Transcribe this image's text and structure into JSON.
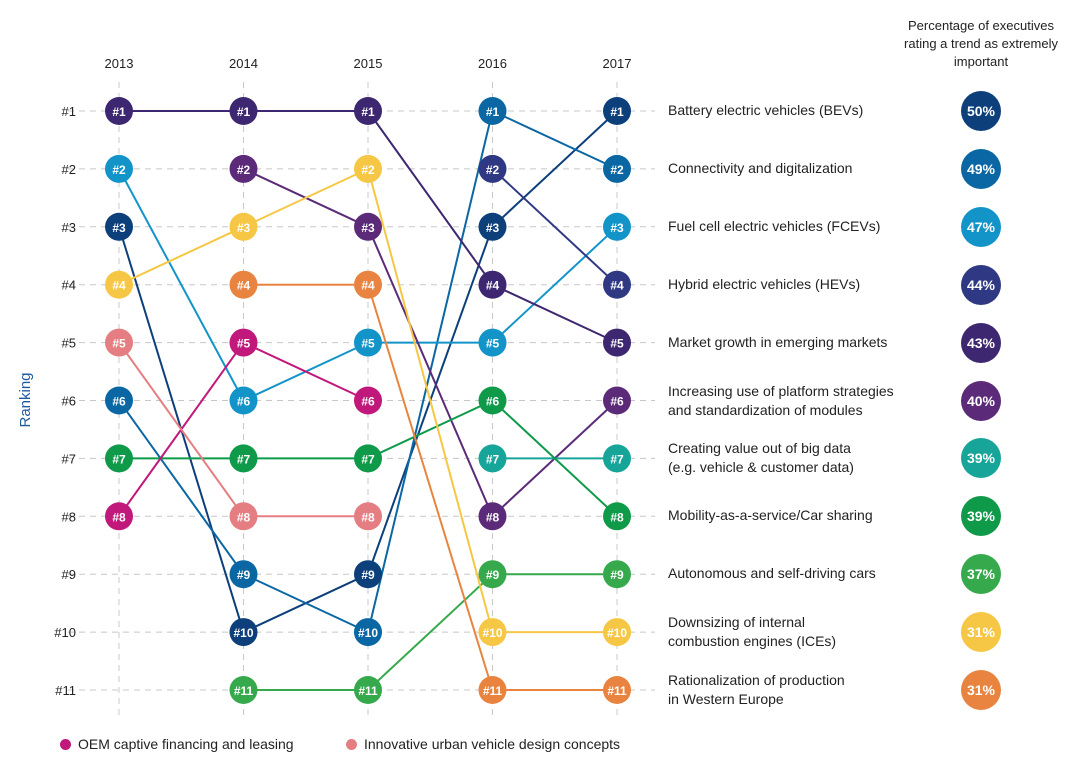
{
  "chart_data": {
    "type": "line",
    "subtype": "bump-chart",
    "title": "",
    "xlabel": "",
    "ylabel": "Ranking",
    "x": [
      "2013",
      "2014",
      "2015",
      "2016",
      "2017"
    ],
    "rank_tick_labels": [
      "#1",
      "#2",
      "#3",
      "#4",
      "#5",
      "#6",
      "#7",
      "#8",
      "#9",
      "#10",
      "#11"
    ],
    "ylim": [
      1,
      11
    ],
    "grid": true,
    "percentage_header": "Percentage of executives\nrating a trend as extremely\nimportant",
    "series": [
      {
        "name": "Battery electric vehicles (BEVs)",
        "color": "#0d3f7a",
        "ranks": [
          3,
          10,
          9,
          3,
          1
        ],
        "pct": "50%"
      },
      {
        "name": "Connectivity and digitalization",
        "color": "#0b67a3",
        "ranks": [
          6,
          9,
          10,
          1,
          2
        ],
        "pct": "49%"
      },
      {
        "name": "Fuel cell electric vehicles (FCEVs)",
        "color": "#1294c9",
        "ranks": [
          2,
          6,
          5,
          5,
          3
        ],
        "pct": "47%"
      },
      {
        "name": "Hybrid electric vehicles (HEVs)",
        "color": "#2f3883",
        "ranks": [
          null,
          null,
          null,
          2,
          4
        ],
        "pct": "44%"
      },
      {
        "name": "Market growth in emerging markets",
        "color": "#3d2770",
        "ranks": [
          1,
          1,
          1,
          4,
          5
        ],
        "pct": "43%"
      },
      {
        "name": "Increasing use of platform strategies\nand standardization of modules",
        "color": "#5b2a78",
        "ranks": [
          null,
          2,
          3,
          8,
          6
        ],
        "pct": "40%"
      },
      {
        "name": "Creating value out of big data\n(e.g. vehicle & customer data)",
        "color": "#17a59a",
        "ranks": [
          null,
          null,
          null,
          7,
          7
        ],
        "pct": "39%"
      },
      {
        "name": "Mobility-as-a-service/Car sharing",
        "color": "#0f9a4a",
        "ranks": [
          7,
          7,
          7,
          6,
          8
        ],
        "pct": "39%"
      },
      {
        "name": "Autonomous and self-driving cars",
        "color": "#36a94c",
        "ranks": [
          null,
          11,
          11,
          9,
          9
        ],
        "pct": "37%"
      },
      {
        "name": "Downsizing of internal\ncombustion engines (ICEs)",
        "color": "#f6c744",
        "ranks": [
          4,
          3,
          2,
          10,
          10
        ],
        "pct": "31%"
      },
      {
        "name": "Rationalization of production\nin Western Europe",
        "color": "#e8843f",
        "ranks": [
          null,
          4,
          4,
          11,
          11
        ],
        "pct": "31%"
      },
      {
        "name": "OEM captive financing and leasing",
        "color": "#c0197b",
        "ranks": [
          8,
          5,
          6,
          null,
          null
        ],
        "pct": null
      },
      {
        "name": "Innovative urban vehicle design concepts",
        "color": "#e57e82",
        "ranks": [
          5,
          8,
          8,
          null,
          null
        ],
        "pct": null
      }
    ],
    "legend": [
      {
        "label": "OEM captive financing and leasing",
        "color": "#c0197b"
      },
      {
        "label": "Innovative urban vehicle design concepts",
        "color": "#e57e82"
      }
    ]
  }
}
